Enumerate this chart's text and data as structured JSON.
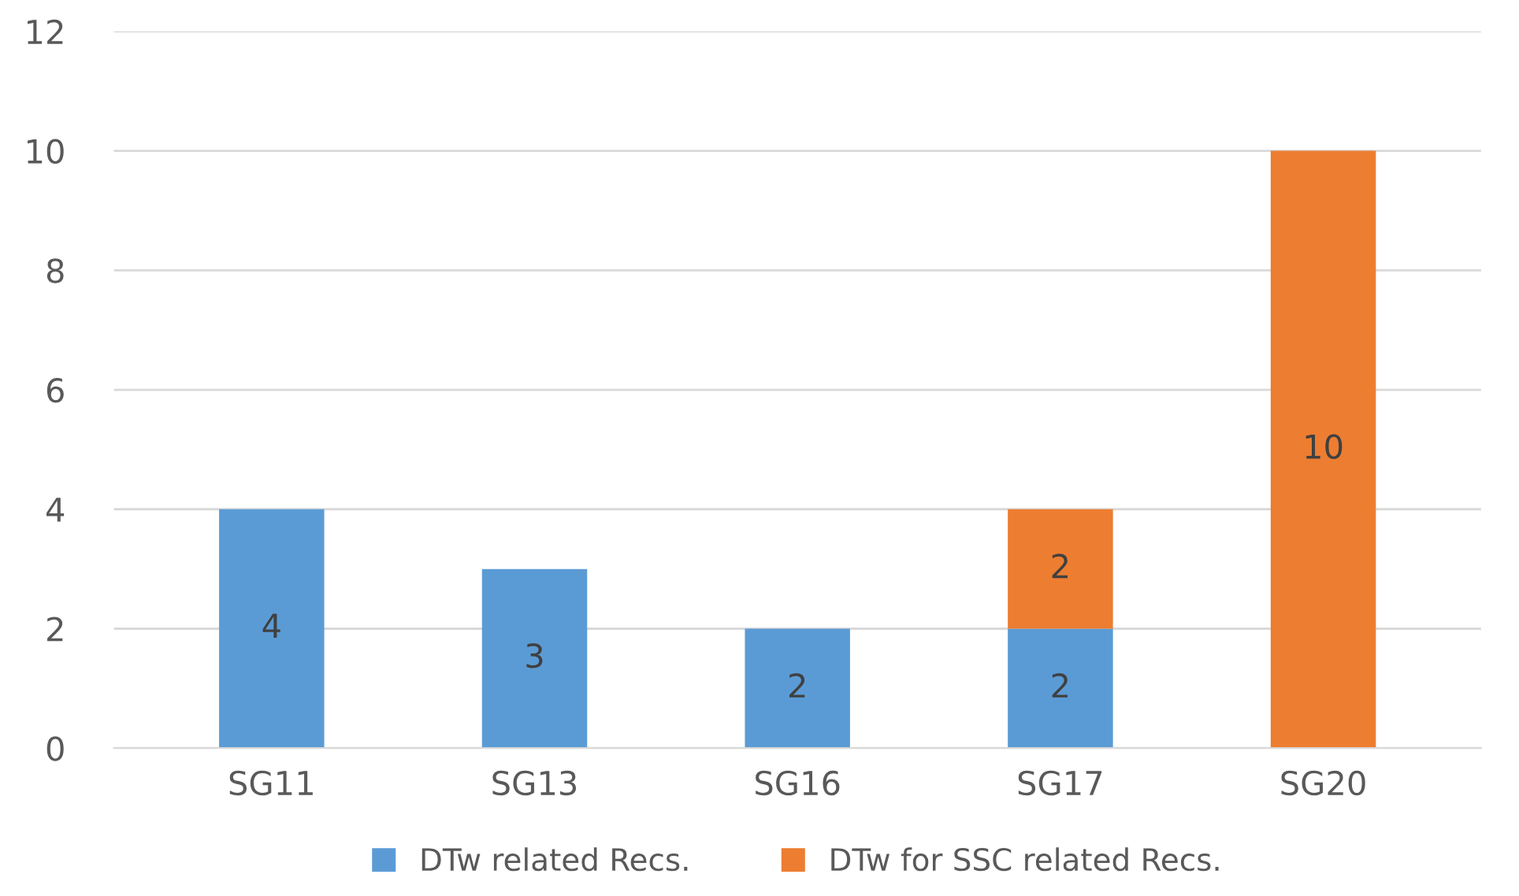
{
  "chart_data": {
    "type": "bar",
    "stacked": true,
    "categories": [
      "SG11",
      "SG13",
      "SG16",
      "SG17",
      "SG20"
    ],
    "series": [
      {
        "name": "DTw related Recs.",
        "color": "#5b9bd5",
        "values": [
          4,
          3,
          2,
          2,
          null
        ]
      },
      {
        "name": "DTw for SSC related Recs.",
        "color": "#ed7d31",
        "values": [
          null,
          null,
          null,
          2,
          10
        ]
      }
    ],
    "ylim": [
      0,
      12
    ],
    "yticks": [
      0,
      2,
      4,
      6,
      8,
      10,
      12
    ],
    "grid": "y",
    "legend": "bottom",
    "data_labels": true
  }
}
